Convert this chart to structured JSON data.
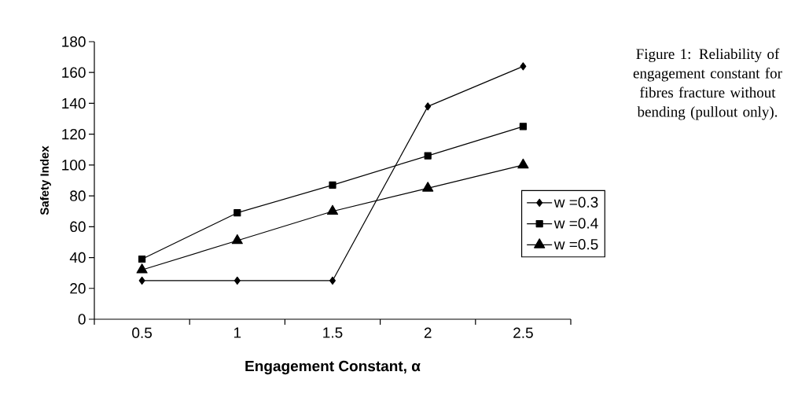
{
  "chart_data": {
    "type": "line",
    "xlabel": "Engagement Constant, α",
    "ylabel": "Safety Index",
    "categories": [
      "0.5",
      "1",
      "1.5",
      "2",
      "2.5"
    ],
    "series": [
      {
        "name": "w =0.3",
        "color": "#000000",
        "marker": "diamond",
        "values": [
          25,
          25,
          25,
          138,
          164
        ]
      },
      {
        "name": "w =0.4",
        "color": "#000000",
        "marker": "square",
        "values": [
          39,
          69,
          87,
          106,
          125
        ]
      },
      {
        "name": "w =0.5",
        "color": "#000000",
        "marker": "triangle",
        "values": [
          32,
          51,
          70,
          85,
          100
        ]
      }
    ],
    "ylim": [
      0,
      180
    ],
    "yticks": [
      0,
      20,
      40,
      60,
      80,
      100,
      120,
      140,
      160,
      180
    ],
    "legend": "right",
    "grid": false,
    "line_style": "solid",
    "annotations": [
      "Figure 1: Reliability of engagement constant for fibres fracture without bending (pullout only)."
    ]
  }
}
